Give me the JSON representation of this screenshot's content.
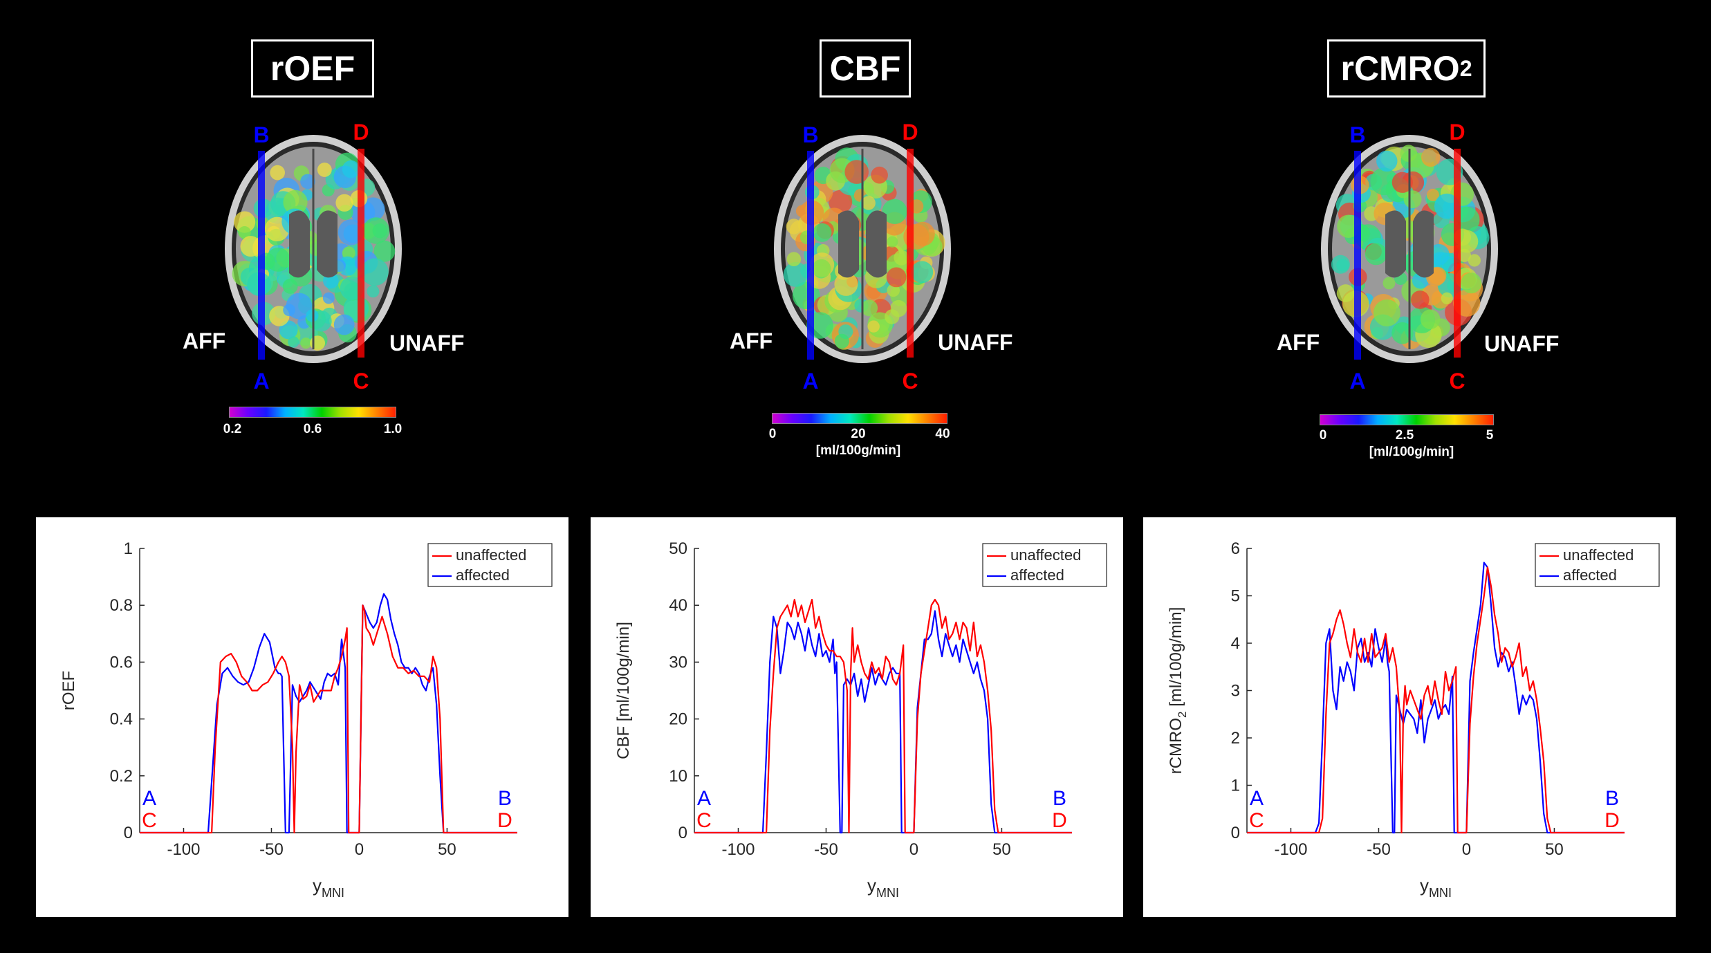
{
  "top_panels": [
    {
      "title_main": "rOEF",
      "title_sub": "",
      "colorbar_ticks": [
        "0.2",
        "0.6",
        "1.0"
      ],
      "colorbar_unit": "",
      "left_label": "AFF",
      "right_label": "UNAFF",
      "line_labels": {
        "blue_top": "B",
        "blue_bottom": "A",
        "red_top": "D",
        "red_bottom": "C"
      }
    },
    {
      "title_main": "CBF",
      "title_sub": "",
      "colorbar_ticks": [
        "0",
        "20",
        "40"
      ],
      "colorbar_unit": "[ml/100g/min]",
      "left_label": "AFF",
      "right_label": "UNAFF",
      "line_labels": {
        "blue_top": "B",
        "blue_bottom": "A",
        "red_top": "D",
        "red_bottom": "C"
      }
    },
    {
      "title_main": "rCMRO",
      "title_sub": "2",
      "colorbar_ticks": [
        "0",
        "2.5",
        "5"
      ],
      "colorbar_unit": "[ml/100g/min]",
      "left_label": "AFF",
      "right_label": "UNAFF",
      "line_labels": {
        "blue_top": "B",
        "blue_bottom": "A",
        "red_top": "D",
        "red_bottom": "C"
      }
    }
  ],
  "colors": {
    "affected": "#0000ff",
    "unaffected": "#ff0000",
    "background": "#000000"
  },
  "chart_data": [
    {
      "type": "line",
      "xlabel": "y",
      "xlabel_sub": "MNI",
      "ylabel": "rOEF",
      "ylabel_sub": "",
      "ylabel_suffix": "",
      "xlim": [
        -125,
        90
      ],
      "ylim": [
        0,
        1
      ],
      "xticks": [
        -100,
        -50,
        0,
        50
      ],
      "xtick_labels": [
        "-100",
        "-50",
        "0",
        "50"
      ],
      "yticks": [
        0,
        0.2,
        0.4,
        0.6,
        0.8,
        1
      ],
      "ytick_labels": [
        "0",
        "0.2",
        "0.4",
        "0.6",
        "0.8",
        "1"
      ],
      "legend_position": "top-right",
      "corner_labels": {
        "left_top": "A",
        "left_bottom": "C",
        "right_top": "B",
        "right_bottom": "D"
      },
      "series": [
        {
          "name": "unaffected",
          "color": "#ff0000",
          "x": [
            -125,
            -84,
            -82,
            -79,
            -76,
            -73,
            -70,
            -67,
            -64,
            -61,
            -58,
            -55,
            -52,
            -49,
            -46,
            -44,
            -42,
            -40,
            -38,
            -37,
            -36,
            -34,
            -32,
            -30,
            -28,
            -26,
            -24,
            -22,
            -20,
            -18,
            -16,
            -14,
            -12,
            -10,
            -8,
            -7,
            -6,
            -4,
            -3,
            -2,
            0,
            2,
            3,
            4,
            6,
            8,
            10,
            13,
            16,
            19,
            22,
            25,
            28,
            31,
            34,
            37,
            40,
            42,
            44,
            46,
            47,
            48,
            49,
            90
          ],
          "y": [
            0,
            0,
            0.3,
            0.6,
            0.62,
            0.63,
            0.6,
            0.55,
            0.53,
            0.5,
            0.5,
            0.52,
            0.53,
            0.56,
            0.6,
            0.62,
            0.6,
            0.55,
            0.3,
            0,
            0.28,
            0.52,
            0.47,
            0.48,
            0.52,
            0.46,
            0.48,
            0.5,
            0.5,
            0.5,
            0.5,
            0.55,
            0.58,
            0.62,
            0.68,
            0.72,
            0,
            0,
            0,
            0,
            0,
            0.8,
            0.78,
            0.72,
            0.7,
            0.66,
            0.7,
            0.76,
            0.7,
            0.62,
            0.58,
            0.58,
            0.56,
            0.57,
            0.55,
            0.55,
            0.53,
            0.62,
            0.58,
            0.4,
            0.2,
            0,
            0,
            0
          ]
        },
        {
          "name": "affected",
          "color": "#0000ff",
          "x": [
            -125,
            -86,
            -84,
            -81,
            -78,
            -75,
            -72,
            -69,
            -66,
            -63,
            -60,
            -57,
            -54,
            -51,
            -48,
            -46,
            -45,
            -44,
            -42,
            -40,
            -38,
            -36,
            -34,
            -32,
            -30,
            -28,
            -26,
            -24,
            -22,
            -20,
            -18,
            -16,
            -14,
            -12,
            -10,
            -8,
            -7,
            -6,
            -5,
            -4,
            -2,
            0,
            2,
            4,
            6,
            8,
            10,
            12,
            14,
            16,
            18,
            20,
            22,
            24,
            26,
            28,
            30,
            32,
            34,
            36,
            38,
            40,
            42,
            44,
            46,
            48,
            49,
            90
          ],
          "y": [
            0,
            0,
            0.18,
            0.45,
            0.56,
            0.58,
            0.55,
            0.53,
            0.52,
            0.53,
            0.58,
            0.65,
            0.7,
            0.67,
            0.58,
            0.56,
            0.56,
            0.55,
            0,
            0,
            0.52,
            0.48,
            0.46,
            0.48,
            0.5,
            0.53,
            0.51,
            0.49,
            0.47,
            0.53,
            0.56,
            0.55,
            0.56,
            0.52,
            0.68,
            0.58,
            0,
            0,
            0,
            0,
            0,
            0,
            0.8,
            0.77,
            0.74,
            0.72,
            0.74,
            0.8,
            0.84,
            0.82,
            0.75,
            0.7,
            0.66,
            0.6,
            0.58,
            0.58,
            0.56,
            0.58,
            0.56,
            0.52,
            0.5,
            0.55,
            0.58,
            0.45,
            0.2,
            0,
            0,
            0
          ]
        }
      ]
    },
    {
      "type": "line",
      "xlabel": "y",
      "xlabel_sub": "MNI",
      "ylabel": "CBF [ml/100g/min]",
      "ylabel_sub": "",
      "ylabel_suffix": "",
      "xlim": [
        -125,
        90
      ],
      "ylim": [
        0,
        50
      ],
      "xticks": [
        -100,
        -50,
        0,
        50
      ],
      "xtick_labels": [
        "-100",
        "-50",
        "0",
        "50"
      ],
      "yticks": [
        0,
        10,
        20,
        30,
        40,
        50
      ],
      "ytick_labels": [
        "0",
        "10",
        "20",
        "30",
        "40",
        "50"
      ],
      "legend_position": "top-right",
      "corner_labels": {
        "left_top": "A",
        "left_bottom": "C",
        "right_top": "B",
        "right_bottom": "D"
      },
      "series": [
        {
          "name": "unaffected",
          "color": "#ff0000",
          "x": [
            -125,
            -84,
            -82,
            -80,
            -78,
            -76,
            -74,
            -72,
            -70,
            -68,
            -66,
            -64,
            -62,
            -60,
            -58,
            -56,
            -54,
            -52,
            -50,
            -48,
            -46,
            -44,
            -42,
            -40,
            -38,
            -37,
            -36,
            -35,
            -34,
            -32,
            -30,
            -28,
            -26,
            -24,
            -22,
            -20,
            -18,
            -16,
            -14,
            -12,
            -10,
            -8,
            -6,
            -5,
            -4,
            -2,
            0,
            2,
            4,
            6,
            8,
            10,
            12,
            14,
            16,
            18,
            20,
            22,
            24,
            26,
            28,
            30,
            32,
            34,
            36,
            38,
            40,
            42,
            44,
            46,
            48,
            90
          ],
          "y": [
            0,
            0,
            18,
            28,
            36,
            38,
            39,
            40,
            38,
            41,
            38,
            40,
            37,
            39,
            41,
            36,
            38,
            35,
            33,
            32,
            32,
            31,
            31,
            30,
            25,
            0,
            28,
            36,
            30,
            33,
            30,
            28,
            27,
            30,
            28,
            29,
            27,
            31,
            30,
            27,
            26,
            28,
            33,
            0,
            0,
            0,
            0,
            20,
            28,
            32,
            36,
            40,
            41,
            40,
            36,
            38,
            34,
            35,
            37,
            34,
            37,
            36,
            32,
            37,
            31,
            33,
            30,
            25,
            18,
            4,
            0,
            0
          ]
        },
        {
          "name": "affected",
          "color": "#0000ff",
          "x": [
            -125,
            -86,
            -84,
            -82,
            -80,
            -78,
            -76,
            -74,
            -72,
            -70,
            -68,
            -66,
            -64,
            -62,
            -60,
            -58,
            -56,
            -54,
            -52,
            -50,
            -48,
            -46,
            -45,
            -44,
            -42,
            -41,
            -40,
            -38,
            -36,
            -34,
            -32,
            -30,
            -28,
            -26,
            -24,
            -22,
            -20,
            -18,
            -16,
            -14,
            -12,
            -10,
            -8,
            -7,
            -6,
            -4,
            -2,
            0,
            2,
            4,
            6,
            8,
            10,
            12,
            14,
            16,
            18,
            20,
            22,
            24,
            26,
            28,
            30,
            32,
            34,
            36,
            38,
            40,
            42,
            44,
            46,
            48,
            90
          ],
          "y": [
            0,
            0,
            14,
            30,
            38,
            36,
            28,
            32,
            37,
            36,
            34,
            37,
            35,
            32,
            36,
            33,
            31,
            35,
            31,
            32,
            30,
            34,
            28,
            30,
            0,
            0,
            26,
            27,
            26,
            28,
            24,
            27,
            23,
            26,
            29,
            26,
            28,
            27,
            26,
            28,
            29,
            28,
            28,
            0,
            0,
            0,
            0,
            0,
            22,
            28,
            34,
            34,
            35,
            39,
            34,
            31,
            35,
            33,
            31,
            33,
            30,
            34,
            32,
            30,
            28,
            30,
            27,
            25,
            20,
            5,
            0,
            0,
            0
          ]
        }
      ]
    },
    {
      "type": "line",
      "xlabel": "y",
      "xlabel_sub": "MNI",
      "ylabel": "rCMRO",
      "ylabel_sub": "2",
      "ylabel_suffix": " [ml/100g/min]",
      "xlim": [
        -125,
        90
      ],
      "ylim": [
        0,
        6
      ],
      "xticks": [
        -100,
        -50,
        0,
        50
      ],
      "xtick_labels": [
        "-100",
        "-50",
        "0",
        "50"
      ],
      "yticks": [
        0,
        1,
        2,
        3,
        4,
        5,
        6
      ],
      "ytick_labels": [
        "0",
        "1",
        "2",
        "3",
        "4",
        "5",
        "6"
      ],
      "legend_position": "top-right",
      "corner_labels": {
        "left_top": "A",
        "left_bottom": "C",
        "right_top": "B",
        "right_bottom": "D"
      },
      "series": [
        {
          "name": "unaffected",
          "color": "#ff0000",
          "x": [
            -125,
            -84,
            -82,
            -80,
            -78,
            -76,
            -74,
            -72,
            -70,
            -68,
            -66,
            -64,
            -62,
            -60,
            -58,
            -56,
            -54,
            -52,
            -50,
            -48,
            -46,
            -44,
            -42,
            -40,
            -38,
            -37,
            -36,
            -35,
            -34,
            -32,
            -30,
            -28,
            -26,
            -24,
            -22,
            -20,
            -18,
            -16,
            -14,
            -12,
            -10,
            -8,
            -6,
            -5,
            -4,
            -2,
            0,
            2,
            4,
            6,
            8,
            10,
            12,
            14,
            16,
            18,
            20,
            22,
            24,
            26,
            28,
            30,
            32,
            34,
            36,
            38,
            40,
            42,
            44,
            46,
            48,
            90
          ],
          "y": [
            0,
            0,
            0.3,
            2.5,
            4.0,
            4.2,
            4.5,
            4.7,
            4.4,
            4.0,
            3.7,
            4.3,
            3.8,
            3.6,
            4.1,
            3.6,
            4.2,
            3.7,
            3.8,
            3.9,
            4.2,
            3.6,
            3.9,
            3.5,
            2.5,
            0,
            2.5,
            3.1,
            2.7,
            3.0,
            2.8,
            2.6,
            2.4,
            2.9,
            3.1,
            2.7,
            3.2,
            2.8,
            2.5,
            3.4,
            3.0,
            3.2,
            3.5,
            0,
            0,
            0,
            0,
            2.3,
            3.3,
            4.0,
            4.5,
            5.0,
            5.6,
            5.2,
            4.6,
            4.2,
            3.6,
            3.9,
            3.8,
            3.5,
            3.7,
            4.0,
            3.3,
            3.5,
            3.0,
            3.2,
            2.8,
            2.2,
            1.5,
            0.3,
            0,
            0
          ]
        },
        {
          "name": "affected",
          "color": "#0000ff",
          "x": [
            -125,
            -86,
            -84,
            -82,
            -80,
            -78,
            -76,
            -74,
            -72,
            -70,
            -68,
            -66,
            -64,
            -62,
            -60,
            -58,
            -56,
            -54,
            -52,
            -50,
            -48,
            -46,
            -45,
            -44,
            -42,
            -41,
            -40,
            -38,
            -36,
            -34,
            -32,
            -30,
            -28,
            -26,
            -24,
            -22,
            -20,
            -18,
            -16,
            -14,
            -12,
            -10,
            -8,
            -7,
            -6,
            -4,
            -2,
            0,
            2,
            4,
            6,
            8,
            10,
            12,
            14,
            16,
            18,
            20,
            22,
            24,
            26,
            28,
            30,
            32,
            34,
            36,
            38,
            40,
            42,
            44,
            46,
            48,
            90
          ],
          "y": [
            0,
            0,
            0.2,
            2.0,
            4.0,
            4.3,
            3.0,
            2.6,
            3.5,
            3.2,
            3.6,
            3.4,
            3.0,
            3.9,
            4.1,
            3.6,
            3.8,
            3.5,
            4.3,
            3.9,
            3.6,
            4.1,
            3.6,
            3.4,
            0,
            0,
            2.9,
            2.6,
            2.3,
            2.6,
            2.5,
            2.4,
            2.1,
            2.8,
            1.9,
            2.4,
            2.6,
            2.8,
            2.4,
            2.6,
            2.7,
            2.5,
            3.3,
            0,
            0,
            0,
            0,
            0,
            3.2,
            3.8,
            4.3,
            4.8,
            5.7,
            5.6,
            4.8,
            3.9,
            3.5,
            3.8,
            3.7,
            3.4,
            3.6,
            3.1,
            2.5,
            2.9,
            2.7,
            2.9,
            2.8,
            2.4,
            1.5,
            0.4,
            0,
            0,
            0
          ]
        }
      ]
    }
  ]
}
